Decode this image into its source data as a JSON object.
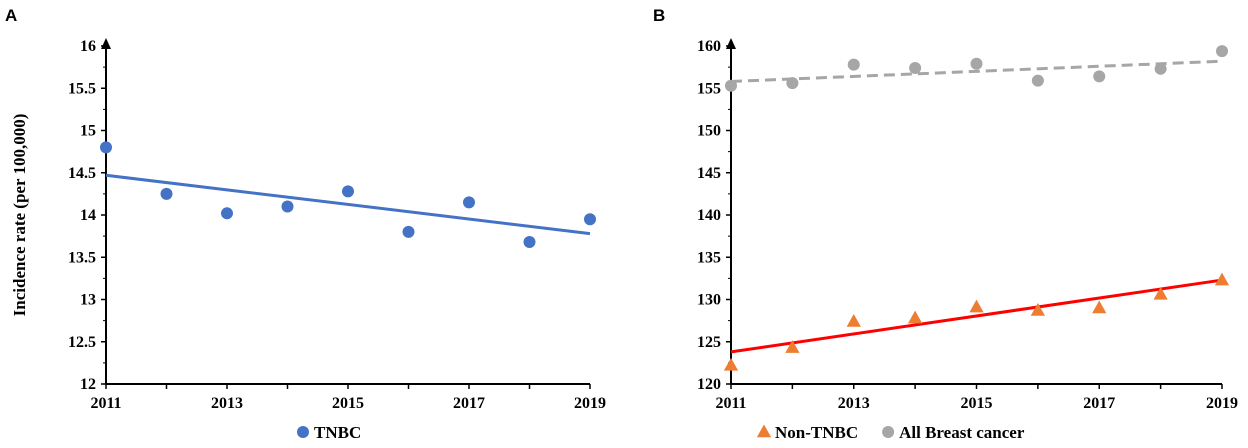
{
  "figure": {
    "ylabel": "Incidence rate (per 100,000)"
  },
  "colors": {
    "tnbc_marker": "#4472C4",
    "tnbc_trend": "#4472C4",
    "nontnbc_marker": "#ED7D31",
    "nontnbc_trend": "#FF0000",
    "all_marker": "#A6A6A6",
    "all_trend": "#A6A6A6"
  },
  "chart_data": [
    {
      "panel": "A",
      "type": "scatter",
      "title": "",
      "xlabel": "",
      "ylabel": "Incidence rate (per 100,000)",
      "xlim": [
        2011,
        2019
      ],
      "ylim": [
        12,
        16
      ],
      "x_ticks": [
        "2011",
        "2013",
        "2015",
        "2017",
        "2019"
      ],
      "y_ticks": [
        "12",
        "12.5",
        "13",
        "13.5",
        "14",
        "14.5",
        "15",
        "15.5",
        "16"
      ],
      "series": [
        {
          "name": "TNBC",
          "marker": "circle",
          "x": [
            2011,
            2012,
            2013,
            2014,
            2015,
            2016,
            2017,
            2018,
            2019
          ],
          "values": [
            14.8,
            14.25,
            14.02,
            14.1,
            14.28,
            13.8,
            14.15,
            13.68,
            13.95
          ],
          "trend": {
            "style": "solid",
            "x": [
              2011,
              2019
            ],
            "values": [
              14.47,
              13.78
            ]
          }
        }
      ],
      "legend": {
        "position": "bottom",
        "entries": [
          "TNBC"
        ]
      }
    },
    {
      "panel": "B",
      "type": "scatter",
      "title": "",
      "xlabel": "",
      "ylabel": "",
      "xlim": [
        2011,
        2019
      ],
      "ylim": [
        120,
        160
      ],
      "x_ticks": [
        "2011",
        "2013",
        "2015",
        "2017",
        "2019"
      ],
      "y_ticks": [
        "120",
        "125",
        "130",
        "135",
        "140",
        "145",
        "150",
        "155",
        "160"
      ],
      "series": [
        {
          "name": "Non-TNBC",
          "marker": "triangle",
          "x": [
            2011,
            2012,
            2013,
            2014,
            2015,
            2016,
            2017,
            2018,
            2019
          ],
          "values": [
            122.2,
            124.3,
            127.4,
            127.8,
            129.1,
            128.7,
            129.0,
            130.6,
            132.3
          ],
          "trend": {
            "style": "solid",
            "x": [
              2011,
              2019
            ],
            "values": [
              123.8,
              132.3
            ]
          }
        },
        {
          "name": "All Breast cancer",
          "marker": "circle",
          "x": [
            2011,
            2012,
            2013,
            2014,
            2015,
            2016,
            2017,
            2018,
            2019
          ],
          "values": [
            155.3,
            155.6,
            157.8,
            157.4,
            157.9,
            155.9,
            156.4,
            157.3,
            159.4
          ],
          "trend": {
            "style": "dashed",
            "x": [
              2011,
              2019
            ],
            "values": [
              155.8,
              158.2
            ]
          }
        }
      ],
      "legend": {
        "position": "bottom",
        "entries": [
          "Non-TNBC",
          "All Breast cancer"
        ]
      }
    }
  ]
}
